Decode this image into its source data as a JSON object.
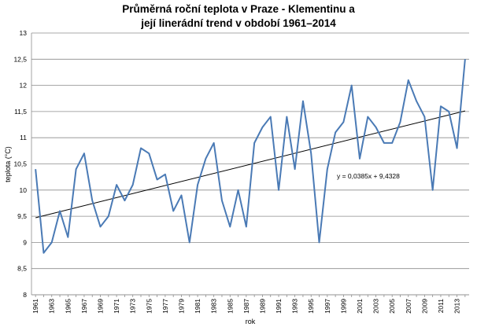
{
  "chart_data": {
    "type": "line",
    "title_lines": [
      "Průměrná roční teplota v Praze - Klementinu a",
      "její linerádní trend v období 1961–2014"
    ],
    "xlabel": "rok",
    "ylabel": "teplota (°C)",
    "ylim": [
      8,
      13
    ],
    "yticks": [
      "8",
      "8,5",
      "9",
      "9,5",
      "10",
      "10,5",
      "11",
      "11,5",
      "12",
      "12,5",
      "13"
    ],
    "grid": "horizontal",
    "x": [
      1961,
      1962,
      1963,
      1964,
      1965,
      1966,
      1967,
      1968,
      1969,
      1970,
      1971,
      1972,
      1973,
      1974,
      1975,
      1976,
      1977,
      1978,
      1979,
      1980,
      1981,
      1982,
      1983,
      1984,
      1985,
      1986,
      1987,
      1988,
      1989,
      1990,
      1991,
      1992,
      1993,
      1994,
      1995,
      1996,
      1997,
      1998,
      1999,
      2000,
      2001,
      2002,
      2003,
      2004,
      2005,
      2006,
      2007,
      2008,
      2009,
      2010,
      2011,
      2012,
      2013,
      2014
    ],
    "xtick_labels": [
      "1961",
      "1963",
      "1965",
      "1967",
      "1969",
      "1971",
      "1973",
      "1975",
      "1977",
      "1979",
      "1981",
      "1983",
      "1985",
      "1987",
      "1989",
      "1991",
      "1993",
      "1995",
      "1997",
      "1999",
      "2001",
      "2003",
      "2005",
      "2007",
      "2009",
      "2011",
      "2013"
    ],
    "series": [
      {
        "color": "#4a7ab5",
        "values": [
          10.4,
          8.8,
          9.0,
          9.6,
          9.1,
          10.4,
          10.7,
          9.8,
          9.3,
          9.5,
          10.1,
          9.8,
          10.1,
          10.8,
          10.7,
          10.2,
          10.3,
          9.6,
          9.9,
          9.0,
          10.1,
          10.6,
          10.9,
          9.8,
          9.3,
          10.0,
          9.3,
          10.9,
          11.2,
          11.4,
          10.0,
          11.4,
          10.4,
          11.7,
          10.7,
          9.0,
          10.4,
          11.1,
          11.3,
          12.0,
          10.6,
          11.4,
          11.2,
          10.9,
          10.9,
          11.3,
          12.1,
          11.7,
          11.4,
          10.0,
          11.6,
          11.5,
          10.8,
          12.5
        ]
      }
    ],
    "trendline": {
      "color": "#000000",
      "slope": 0.0385,
      "intercept": 9.4328,
      "equation": "y = 0,0385x + 9,4328"
    }
  }
}
